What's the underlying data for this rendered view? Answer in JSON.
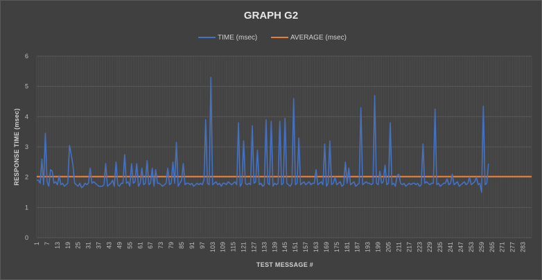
{
  "chart_data": {
    "type": "line",
    "title": "GRAPH G2",
    "xlabel": "TEST MESSAGE #",
    "ylabel": "RESPONSE TIME  (msec)",
    "ylim": [
      0,
      6
    ],
    "yticks": [
      "0",
      "1",
      "2",
      "3",
      "4",
      "5",
      "6"
    ],
    "x_tick_labels": [
      "1",
      "7",
      "13",
      "19",
      "25",
      "31",
      "37",
      "43",
      "49",
      "55",
      "61",
      "67",
      "73",
      "79",
      "85",
      "91",
      "97",
      "103",
      "109",
      "115",
      "121",
      "127",
      "133",
      "139",
      "145",
      "151",
      "157",
      "163",
      "169",
      "175",
      "181",
      "187",
      "193",
      "199",
      "205",
      "211",
      "217",
      "223",
      "229",
      "235",
      "241",
      "247",
      "253",
      "259",
      "265",
      "271",
      "277",
      "283"
    ],
    "x_range": [
      1,
      288
    ],
    "grid": true,
    "legend_position": "top",
    "series": [
      {
        "name": "TIME (msec)",
        "color": "#4472c4",
        "values": [
          1.9,
          1.9,
          1.8,
          2.6,
          1.75,
          3.45,
          1.85,
          1.7,
          2.25,
          2.2,
          1.8,
          1.85,
          1.75,
          2.05,
          1.75,
          1.8,
          1.7,
          1.75,
          1.8,
          3.05,
          2.75,
          2.4,
          1.8,
          1.75,
          1.7,
          1.8,
          1.65,
          1.7,
          1.8,
          1.75,
          1.8,
          2.3,
          1.8,
          1.85,
          1.8,
          1.75,
          1.7,
          1.7,
          1.7,
          1.75,
          2.45,
          1.7,
          1.75,
          1.8,
          1.9,
          1.7,
          2.5,
          1.75,
          1.7,
          1.8,
          1.8,
          2.75,
          1.8,
          1.85,
          1.7,
          2.45,
          1.8,
          1.85,
          2.45,
          1.7,
          1.8,
          2.3,
          1.75,
          1.8,
          2.55,
          1.75,
          1.8,
          2.3,
          1.7,
          2.25,
          1.8,
          1.8,
          1.75,
          1.7,
          1.75,
          1.8,
          2.3,
          1.75,
          1.8,
          2.5,
          1.8,
          3.15,
          1.7,
          1.8,
          1.9,
          2.45,
          1.75,
          1.8,
          1.8,
          1.75,
          1.8,
          1.7,
          1.75,
          1.8,
          1.75,
          1.8,
          1.75,
          1.9,
          3.9,
          1.8,
          1.75,
          5.3,
          1.75,
          1.8,
          1.85,
          1.75,
          1.8,
          1.7,
          1.8,
          1.8,
          1.75,
          1.85,
          1.8,
          1.75,
          1.8,
          1.85,
          1.75,
          3.8,
          1.7,
          1.8,
          3.2,
          1.8,
          1.75,
          1.8,
          1.75,
          3.7,
          1.8,
          1.85,
          2.9,
          1.75,
          1.8,
          1.7,
          1.75,
          3.9,
          1.8,
          1.75,
          3.85,
          1.7,
          1.8,
          1.75,
          1.8,
          3.85,
          1.75,
          1.8,
          3.95,
          1.8,
          1.75,
          1.7,
          1.8,
          4.6,
          1.75,
          1.8,
          3.3,
          1.75,
          1.8,
          1.85,
          1.75,
          1.8,
          1.85,
          1.75,
          1.8,
          1.8,
          2.25,
          1.75,
          1.8,
          1.85,
          1.75,
          3.1,
          1.7,
          1.8,
          3.2,
          1.75,
          1.8,
          2.0,
          1.75,
          1.8,
          1.85,
          1.7,
          1.75,
          2.5,
          1.8,
          2.3,
          1.75,
          1.8,
          1.85,
          1.7,
          1.75,
          1.8,
          4.3,
          1.75,
          1.8,
          1.85,
          1.8,
          1.8,
          1.75,
          1.8,
          4.7,
          1.8,
          1.75,
          2.2,
          1.8,
          1.85,
          2.4,
          1.75,
          1.8,
          3.8,
          1.75,
          1.8,
          1.7,
          2.05,
          2.1,
          1.8,
          1.75,
          1.8,
          1.7,
          1.75,
          1.8,
          1.75,
          1.8,
          1.8,
          1.75,
          1.8,
          1.7,
          1.75,
          3.1,
          1.8,
          1.85,
          1.8,
          1.75,
          1.8,
          1.8,
          4.25,
          1.75,
          1.8,
          1.7,
          1.75,
          1.8,
          1.8,
          1.95,
          1.75,
          1.8,
          2.1,
          1.75,
          1.8,
          1.85,
          1.7,
          1.75,
          1.8,
          1.85,
          1.75,
          1.8,
          2.0,
          1.75,
          1.8,
          1.85,
          2.0,
          1.75,
          1.8,
          1.5,
          4.35,
          1.75,
          1.8,
          2.45
        ]
      },
      {
        "name": "AVERAGE (msec)",
        "color": "#ed7d31",
        "constant": 2.02
      }
    ]
  }
}
